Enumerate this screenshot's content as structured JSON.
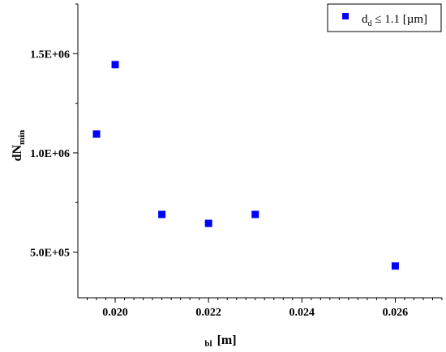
{
  "chart_data": {
    "type": "scatter",
    "series": [
      {
        "name_main": "d",
        "name_sub": "d",
        "name_rest": " ≤ 1.1 [µm]",
        "color": "#0000ff",
        "points": [
          {
            "x": 0.0196,
            "y": 1095000
          },
          {
            "x": 0.02,
            "y": 1445000
          },
          {
            "x": 0.021,
            "y": 690000
          },
          {
            "x": 0.022,
            "y": 645000
          },
          {
            "x": 0.023,
            "y": 690000
          },
          {
            "x": 0.026,
            "y": 430000
          }
        ]
      }
    ],
    "xlim": [
      0.0192,
      0.027
    ],
    "ylim": [
      270000,
      1750000
    ],
    "xticks": [
      0.02,
      0.022,
      0.024,
      0.026
    ],
    "xtick_labels": [
      "0.020",
      "0.022",
      "0.024",
      "0.026"
    ],
    "yticks": [
      500000,
      1000000,
      1500000
    ],
    "ytick_labels": [
      "5.0E+05",
      "1.0E+06",
      "1.5E+06"
    ],
    "xlabel_sub": "bl",
    "xlabel_main": "[m]",
    "ylabel_main": "dN",
    "ylabel_sub": "min",
    "grid": false,
    "legend_position": "top-right"
  }
}
